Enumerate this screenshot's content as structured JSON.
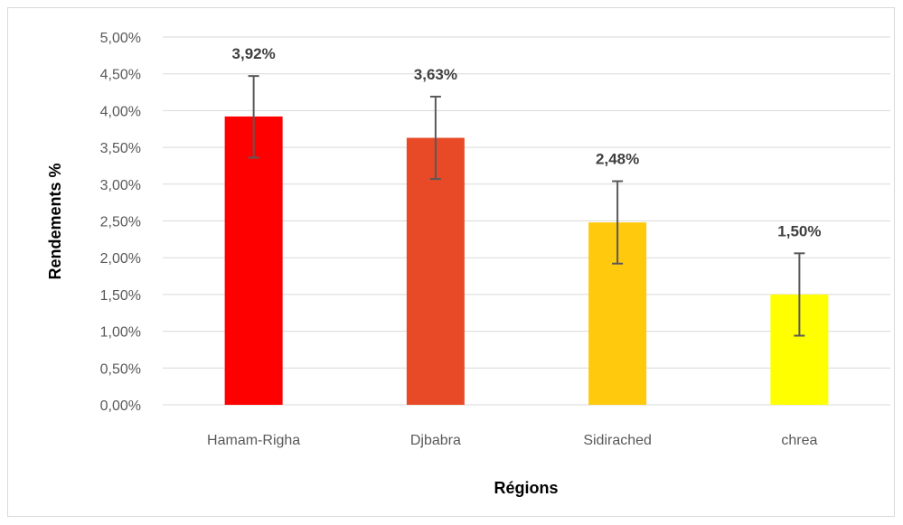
{
  "chart_data": {
    "type": "bar",
    "categories": [
      "Hamam-Righa",
      "Djbabra",
      "Sidirached",
      "chrea"
    ],
    "values": [
      3.92,
      3.63,
      2.48,
      1.5
    ],
    "data_labels": [
      "3,92%",
      "3,63%",
      "2,48%",
      "1,50%"
    ],
    "error_bars": {
      "plus": [
        0.55,
        0.56,
        0.56,
        0.56
      ],
      "minus": [
        0.56,
        0.56,
        0.56,
        0.56
      ]
    },
    "colors": [
      "#ff0000",
      "#e84a27",
      "#ffc90e",
      "#ffff00"
    ],
    "error_bar_color": "#595959",
    "gridline_color": "#d9d9d9",
    "title": "",
    "xlabel": "Régions",
    "ylabel": "Rendements %",
    "ylim": [
      0,
      5
    ],
    "yticks": [
      0,
      0.5,
      1,
      1.5,
      2,
      2.5,
      3,
      3.5,
      4,
      4.5,
      5
    ],
    "ytick_labels": [
      "0,00%",
      "0,50%",
      "1,00%",
      "1,50%",
      "2,00%",
      "2,50%",
      "3,00%",
      "3,50%",
      "4,00%",
      "4,50%",
      "5,00%"
    ],
    "grid": true,
    "legend": "none"
  }
}
